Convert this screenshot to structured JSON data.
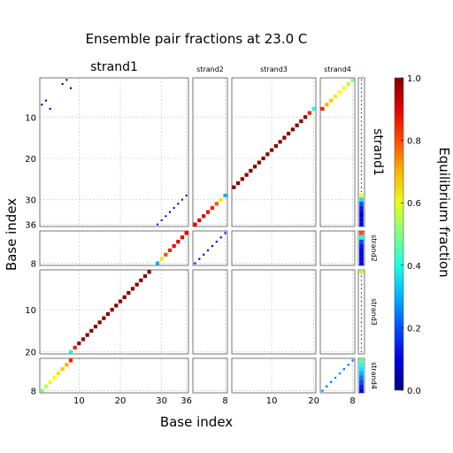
{
  "chart_data": {
    "type": "heatmap",
    "title": "Ensemble pair fractions at 23.0 C",
    "xlabel": "Base index",
    "ylabel": "Base index",
    "colorbar": {
      "label": "Equilibrium fraction",
      "range": [
        0.0,
        1.0
      ],
      "ticks": [
        "0.0",
        "0.2",
        "0.4",
        "0.6",
        "0.8",
        "1.0"
      ],
      "colormap": "jet"
    },
    "grid": true,
    "strands": [
      {
        "name": "strand1",
        "length": 36,
        "ticks": [
          10,
          20,
          30,
          36
        ]
      },
      {
        "name": "strand2",
        "length": 8,
        "ticks": [
          8
        ]
      },
      {
        "name": "strand3",
        "length": 20,
        "ticks": [
          10,
          20
        ]
      },
      {
        "name": "strand4",
        "length": 8,
        "ticks": [
          8
        ]
      }
    ],
    "pairs": [
      {
        "strand_i": 0,
        "strand_j": 0,
        "points": [
          [
            1,
            7
          ],
          [
            2,
            6
          ],
          [
            3,
            8
          ],
          [
            7,
            1
          ],
          [
            8,
            3
          ],
          [
            6,
            2
          ]
        ],
        "value": 0.02
      },
      {
        "strand_i": 0,
        "strand_j": 0,
        "points": [
          [
            29,
            36
          ],
          [
            30,
            35
          ],
          [
            31,
            34
          ],
          [
            32,
            33
          ],
          [
            33,
            32
          ],
          [
            34,
            31
          ],
          [
            35,
            30
          ],
          [
            36,
            29
          ]
        ],
        "value": 0.1
      },
      {
        "strand_i": 0,
        "strand_j": 1,
        "start_i": 29,
        "count": 8,
        "values": [
          0.3,
          0.65,
          0.8,
          0.85,
          0.88,
          0.9,
          0.9,
          0.9
        ]
      },
      {
        "strand_i": 0,
        "strand_j": 2,
        "start_i": 8,
        "count": 21,
        "values": [
          0.4,
          0.85,
          0.98,
          0.98,
          0.99,
          0.99,
          0.99,
          0.99,
          0.99,
          0.99,
          0.99,
          0.99,
          0.99,
          0.99,
          0.99,
          0.99,
          0.99,
          0.99,
          0.99,
          0.99,
          0.95
        ]
      },
      {
        "strand_i": 0,
        "strand_j": 3,
        "start_i": 1,
        "count": 8,
        "values": [
          0.5,
          0.55,
          0.6,
          0.62,
          0.65,
          0.68,
          0.7,
          0.85
        ]
      },
      {
        "strand_i": 1,
        "strand_j": 1,
        "points": [
          [
            1,
            8
          ],
          [
            2,
            7
          ],
          [
            3,
            6
          ],
          [
            4,
            5
          ],
          [
            5,
            4
          ],
          [
            6,
            3
          ],
          [
            7,
            2
          ],
          [
            8,
            1
          ]
        ],
        "value": 0.1
      },
      {
        "strand_i": 3,
        "strand_j": 3,
        "points": [
          [
            1,
            8
          ],
          [
            2,
            7
          ],
          [
            3,
            6
          ],
          [
            4,
            5
          ],
          [
            5,
            4
          ],
          [
            6,
            3
          ],
          [
            7,
            2
          ],
          [
            8,
            1
          ]
        ],
        "value": 0.25
      },
      {
        "strand_i": 3,
        "strand_j": 3,
        "points": [
          [
            1,
            8
          ],
          [
            2,
            7
          ],
          [
            3,
            6
          ],
          [
            8,
            1
          ],
          [
            7,
            2
          ],
          [
            6,
            3
          ]
        ],
        "value": 0.25
      }
    ],
    "unpaired": [
      [
        0.02,
        0.02,
        0.02,
        0.02,
        0.02,
        0.02,
        0.02,
        0.02,
        0.01,
        0.01,
        0.01,
        0.01,
        0.01,
        0.01,
        0.01,
        0.01,
        0.01,
        0.01,
        0.01,
        0.01,
        0.01,
        0.01,
        0.01,
        0.01,
        0.01,
        0.01,
        0.01,
        0.01,
        0.6,
        0.35,
        0.2,
        0.15,
        0.12,
        0.1,
        0.1,
        0.1
      ],
      [
        0.8,
        0.4,
        0.2,
        0.15,
        0.12,
        0.1,
        0.1,
        0.1
      ],
      [
        0.55,
        0.01,
        0.01,
        0.01,
        0.01,
        0.01,
        0.01,
        0.01,
        0.01,
        0.01,
        0.01,
        0.01,
        0.01,
        0.01,
        0.01,
        0.01,
        0.01,
        0.01,
        0.01,
        0.01
      ],
      [
        0.45,
        0.4,
        0.35,
        0.3,
        0.25,
        0.2,
        0.15,
        0.1
      ]
    ]
  }
}
